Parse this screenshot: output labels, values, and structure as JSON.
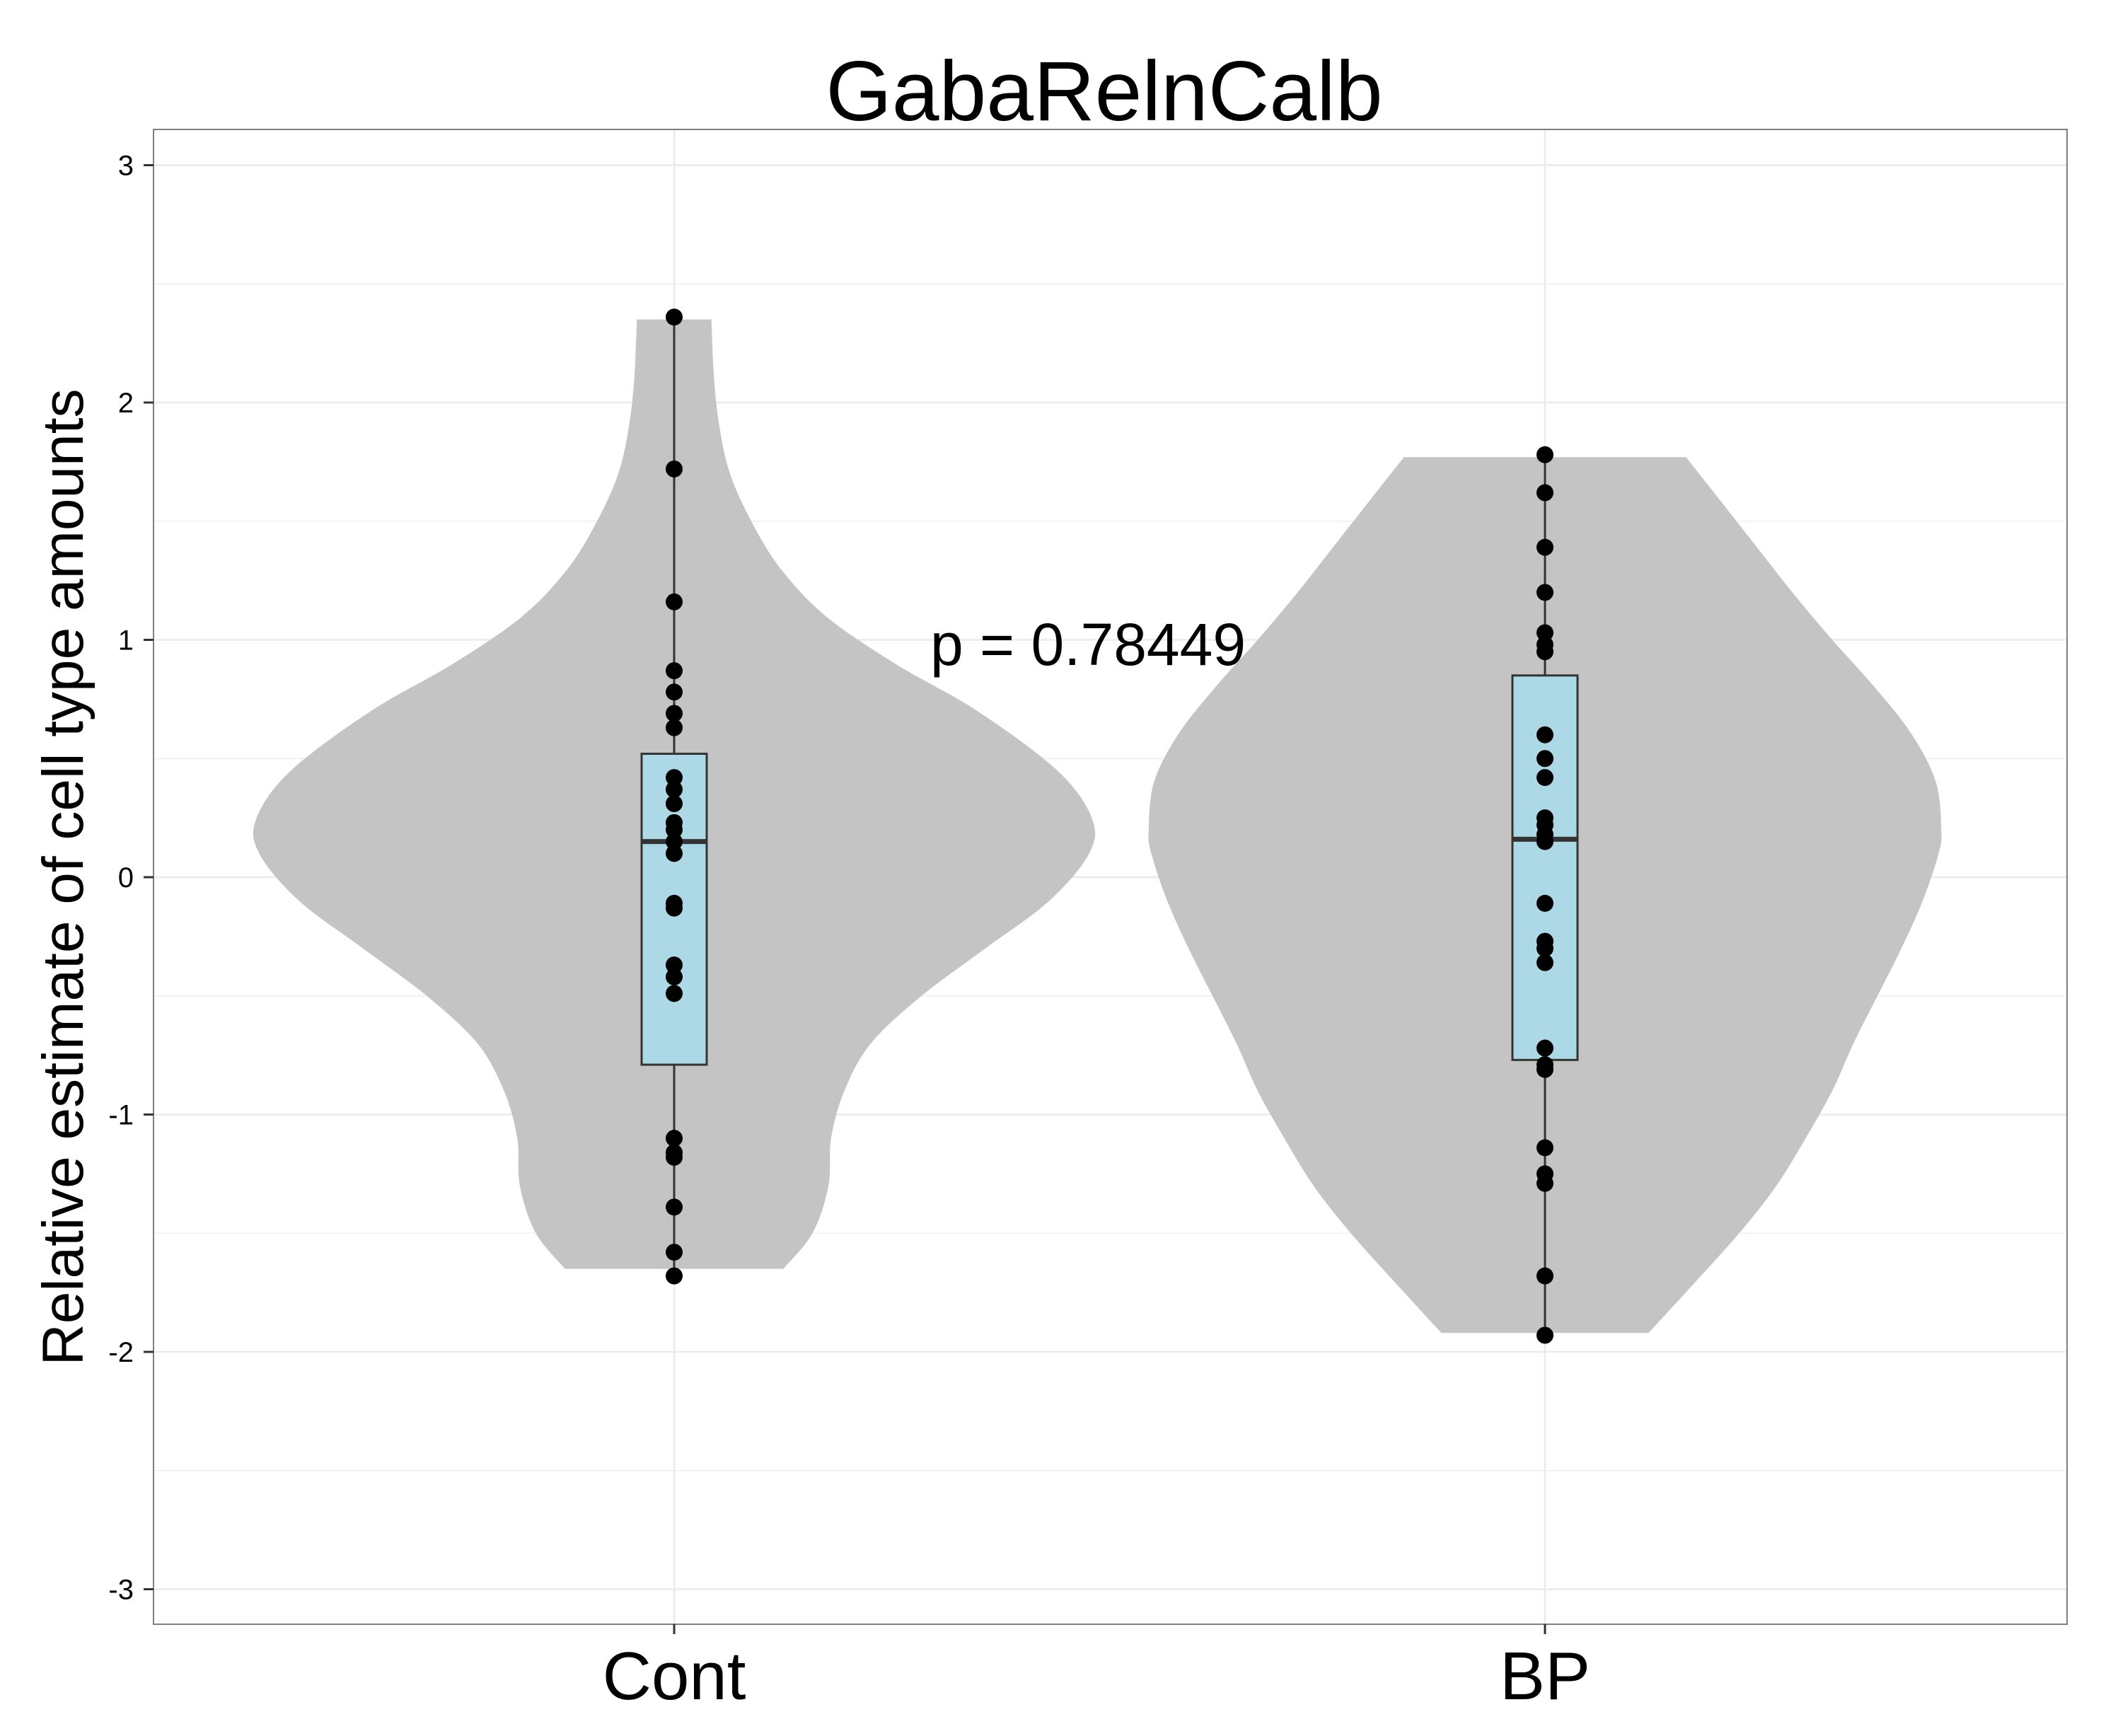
{
  "chart_data": {
    "type": "violin",
    "title": "GabaRelnCalb",
    "xlabel": "",
    "ylabel": "Relative estimate of cell type amounts",
    "categories": [
      "Cont",
      "BP"
    ],
    "ylim": [
      -3.15,
      3.15
    ],
    "yticks": [
      -3,
      -2,
      -1,
      0,
      1,
      2,
      3
    ],
    "ytick_labels": [
      "-3",
      "-2",
      "-1",
      "0",
      "1",
      "2",
      "3"
    ],
    "grid": true,
    "annotation": {
      "text": "p = 0.78449",
      "x_between": [
        0.29,
        0.33
      ],
      "y": 0.98
    },
    "colors": {
      "violin": "#c4c4c4",
      "box": "#add8e6",
      "point": "#000000",
      "grid": "#ebebeb",
      "panel_border": "#7f7f7f"
    },
    "groups": [
      {
        "name": "Cont",
        "points": [
          2.36,
          1.72,
          1.16,
          0.87,
          0.78,
          0.69,
          0.63,
          0.42,
          0.37,
          0.31,
          0.23,
          0.2,
          0.15,
          0.1,
          -0.11,
          -0.13,
          -0.37,
          -0.42,
          -0.49,
          -1.1,
          -1.16,
          -1.18,
          -1.39,
          -1.58,
          -1.68
        ],
        "box": {
          "q1": -0.79,
          "median": 0.15,
          "q3": 0.52,
          "whisker_low": -1.68,
          "whisker_high": 2.36
        },
        "violin": {
          "ymin": -1.65,
          "ymax": 2.35,
          "profile": [
            [
              -1.65,
              0.41
            ],
            [
              -1.5,
              0.52
            ],
            [
              -1.3,
              0.58
            ],
            [
              -1.1,
              0.59
            ],
            [
              -0.9,
              0.64
            ],
            [
              -0.7,
              0.74
            ],
            [
              -0.5,
              0.93
            ],
            [
              -0.3,
              1.17
            ],
            [
              -0.1,
              1.41
            ],
            [
              0.1,
              1.56
            ],
            [
              0.25,
              1.57
            ],
            [
              0.45,
              1.44
            ],
            [
              0.7,
              1.14
            ],
            [
              0.9,
              0.83
            ],
            [
              1.1,
              0.57
            ],
            [
              1.3,
              0.4
            ],
            [
              1.5,
              0.29
            ],
            [
              1.7,
              0.21
            ],
            [
              1.9,
              0.17
            ],
            [
              2.1,
              0.15
            ],
            [
              2.35,
              0.14
            ]
          ]
        }
      },
      {
        "name": "BP",
        "points": [
          1.78,
          1.62,
          1.39,
          1.2,
          1.03,
          0.98,
          0.95,
          0.6,
          0.5,
          0.42,
          0.25,
          0.22,
          0.18,
          0.15,
          -0.11,
          -0.27,
          -0.3,
          -0.36,
          -0.72,
          -0.79,
          -0.81,
          -1.14,
          -1.25,
          -1.29,
          -1.68,
          -1.93
        ],
        "box": {
          "q1": -0.77,
          "median": 0.16,
          "q3": 0.85,
          "whisker_low": -1.93,
          "whisker_high": 1.78
        },
        "violin": {
          "ymin": -1.92,
          "ymax": 1.77,
          "profile": [
            [
              -1.92,
              0.39
            ],
            [
              -1.7,
              0.57
            ],
            [
              -1.5,
              0.73
            ],
            [
              -1.3,
              0.87
            ],
            [
              -1.1,
              0.98
            ],
            [
              -0.9,
              1.08
            ],
            [
              -0.7,
              1.16
            ],
            [
              -0.5,
              1.25
            ],
            [
              -0.3,
              1.34
            ],
            [
              -0.1,
              1.42
            ],
            [
              0.1,
              1.48
            ],
            [
              0.2,
              1.49
            ],
            [
              0.4,
              1.47
            ],
            [
              0.6,
              1.38
            ],
            [
              0.8,
              1.24
            ],
            [
              1.0,
              1.08
            ],
            [
              1.2,
              0.93
            ],
            [
              1.4,
              0.79
            ],
            [
              1.6,
              0.65
            ],
            [
              1.77,
              0.53
            ]
          ]
        }
      }
    ]
  }
}
